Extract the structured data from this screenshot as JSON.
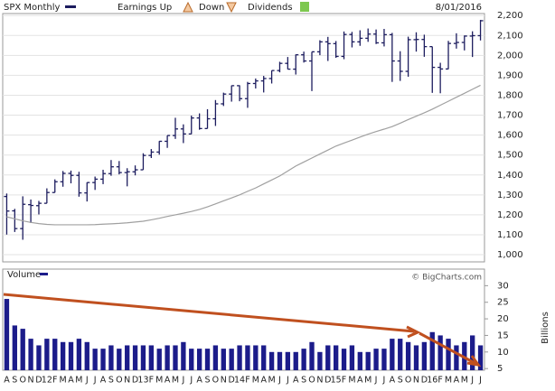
{
  "chart_data": {
    "type": "ohlc",
    "title": "SPX Monthly",
    "date": "8/01/2016",
    "legend": {
      "earnings_up": "Earnings Up",
      "down": "Down",
      "dividends": "Dividends"
    },
    "credit": "© BigCharts.com",
    "categories": [
      "A",
      "S",
      "O",
      "N",
      "D",
      "12",
      "F",
      "M",
      "A",
      "M",
      "J",
      "J",
      "A",
      "S",
      "O",
      "N",
      "D",
      "13",
      "F",
      "M",
      "A",
      "M",
      "J",
      "J",
      "A",
      "S",
      "O",
      "N",
      "D",
      "14",
      "F",
      "M",
      "A",
      "M",
      "J",
      "J",
      "A",
      "S",
      "O",
      "N",
      "D",
      "15",
      "F",
      "M",
      "A",
      "M",
      "J",
      "J",
      "A",
      "S",
      "O",
      "N",
      "D",
      "16",
      "F",
      "M",
      "A",
      "M",
      "J",
      "J"
    ],
    "color": "#1c1c5e",
    "open": [
      1292,
      1220,
      1131,
      1251,
      1246,
      1258,
      1312,
      1366,
      1408,
      1398,
      1310,
      1362,
      1379,
      1407,
      1441,
      1412,
      1416,
      1426,
      1498,
      1515,
      1569,
      1598,
      1631,
      1606,
      1686,
      1633,
      1682,
      1757,
      1806,
      1848,
      1783,
      1859,
      1872,
      1884,
      1924,
      1960,
      1931,
      2003,
      1972,
      2018,
      2068,
      2059,
      1995,
      2105,
      2068,
      2086,
      2107,
      2063,
      2104,
      1972,
      1920,
      2079,
      2080,
      2044,
      1940,
      1932,
      2060,
      2065,
      2097,
      2099
    ],
    "high": [
      1307,
      1230,
      1293,
      1277,
      1270,
      1333,
      1378,
      1420,
      1422,
      1416,
      1363,
      1392,
      1426,
      1475,
      1470,
      1434,
      1448,
      1509,
      1530,
      1570,
      1598,
      1687,
      1654,
      1698,
      1709,
      1730,
      1776,
      1813,
      1849,
      1850,
      1867,
      1884,
      1897,
      1924,
      1968,
      1992,
      2005,
      2019,
      2018,
      2076,
      2093,
      2072,
      2120,
      2118,
      2126,
      2135,
      2130,
      2133,
      2113,
      2021,
      2094,
      2116,
      2104,
      2044,
      1963,
      2073,
      2111,
      2100,
      2121,
      2178
    ],
    "low": [
      1101,
      1114,
      1075,
      1159,
      1202,
      1258,
      1312,
      1341,
      1358,
      1291,
      1267,
      1325,
      1354,
      1396,
      1403,
      1343,
      1398,
      1426,
      1485,
      1502,
      1536,
      1581,
      1560,
      1605,
      1627,
      1633,
      1646,
      1746,
      1768,
      1770,
      1737,
      1834,
      1814,
      1859,
      1915,
      1930,
      1904,
      1964,
      1821,
      2001,
      1972,
      1988,
      1981,
      2040,
      2048,
      2068,
      2057,
      2045,
      1867,
      1872,
      1893,
      2019,
      1993,
      1812,
      1810,
      1931,
      2034,
      2025,
      1992,
      2075
    ],
    "close": [
      1219,
      1131,
      1253,
      1247,
      1258,
      1312,
      1366,
      1408,
      1398,
      1310,
      1362,
      1379,
      1407,
      1441,
      1412,
      1416,
      1426,
      1498,
      1515,
      1569,
      1598,
      1631,
      1606,
      1686,
      1633,
      1682,
      1757,
      1806,
      1848,
      1783,
      1859,
      1872,
      1884,
      1924,
      1960,
      1931,
      2003,
      1972,
      2018,
      2068,
      2059,
      1995,
      2105,
      2068,
      2086,
      2107,
      2063,
      2104,
      1972,
      1920,
      2079,
      2080,
      2044,
      1940,
      1932,
      2060,
      2065,
      2097,
      2099,
      2174
    ],
    "ma": {
      "color": "#a0a0a0",
      "values": [
        1190,
        1180,
        1170,
        1162,
        1156,
        1152,
        1150,
        1150,
        1150,
        1150,
        1150,
        1151,
        1153,
        1155,
        1157,
        1160,
        1164,
        1168,
        1175,
        1183,
        1192,
        1200,
        1208,
        1217,
        1227,
        1240,
        1255,
        1270,
        1285,
        1300,
        1318,
        1335,
        1355,
        1375,
        1395,
        1420,
        1445,
        1465,
        1485,
        1505,
        1525,
        1545,
        1560,
        1575,
        1590,
        1605,
        1618,
        1630,
        1643,
        1660,
        1678,
        1695,
        1712,
        1730,
        1750,
        1770,
        1790,
        1810,
        1830,
        1850
      ]
    },
    "ylim": [
      964,
      2210
    ],
    "yticks": [
      {
        "value": 1000,
        "label": "1,000"
      },
      {
        "value": 1100,
        "label": "1,100"
      },
      {
        "value": 1200,
        "label": "1,200"
      },
      {
        "value": 1300,
        "label": "1,300"
      },
      {
        "value": 1400,
        "label": "1,400"
      },
      {
        "value": 1500,
        "label": "1,500"
      },
      {
        "value": 1600,
        "label": "1,600"
      },
      {
        "value": 1700,
        "label": "1,700"
      },
      {
        "value": 1800,
        "label": "1,800"
      },
      {
        "value": 1900,
        "label": "1,900"
      },
      {
        "value": 2000,
        "label": "2,000"
      },
      {
        "value": 2100,
        "label": "2,100"
      },
      {
        "value": 2200,
        "label": "2,200"
      }
    ],
    "grid": true,
    "volume": {
      "title": "Volume",
      "y_label": "Billions",
      "color": "#1c1c8a",
      "values": [
        26,
        18,
        17,
        14,
        12,
        14,
        14,
        13,
        13,
        14,
        13,
        11,
        11,
        12,
        11,
        12,
        12,
        12,
        12,
        11,
        12,
        12,
        13,
        11,
        11,
        11,
        12,
        11,
        11,
        12,
        12,
        12,
        12,
        10,
        10,
        10,
        10,
        11,
        13,
        10,
        12,
        12,
        11,
        12,
        10,
        10,
        11,
        11,
        14,
        14,
        13,
        12,
        13,
        16,
        15,
        14,
        12,
        13,
        15,
        12
      ],
      "ylim": [
        4.5,
        35
      ],
      "yticks": [
        5,
        10,
        15,
        20,
        25,
        30
      ]
    }
  }
}
